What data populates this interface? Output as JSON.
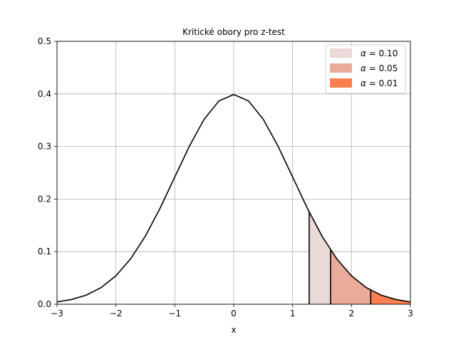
{
  "chart_data": {
    "type": "area",
    "title": "Kritické obory pro z-test",
    "xlabel": "x",
    "ylabel": "",
    "xlim": [
      -3,
      3
    ],
    "ylim": [
      0,
      0.5
    ],
    "xticks": [
      -3,
      -2,
      -1,
      0,
      1,
      2,
      3
    ],
    "xtick_labels": [
      "−3",
      "−2",
      "−1",
      "0",
      "1",
      "2",
      "3"
    ],
    "yticks": [
      0.0,
      0.1,
      0.2,
      0.3,
      0.4,
      0.5
    ],
    "ytick_labels": [
      "0.0",
      "0.1",
      "0.2",
      "0.3",
      "0.4",
      "0.5"
    ],
    "grid": true,
    "legend_position": "top-right",
    "curve": {
      "x": [
        -3.0,
        -2.75,
        -2.5,
        -2.25,
        -2.0,
        -1.75,
        -1.5,
        -1.25,
        -1.0,
        -0.75,
        -0.5,
        -0.25,
        0.0,
        0.25,
        0.5,
        0.75,
        1.0,
        1.25,
        1.5,
        1.75,
        2.0,
        2.25,
        2.5,
        2.75,
        3.0
      ],
      "y": [
        0.0044,
        0.0091,
        0.0175,
        0.0317,
        0.054,
        0.0863,
        0.1295,
        0.1826,
        0.242,
        0.3011,
        0.3521,
        0.3867,
        0.3989,
        0.3867,
        0.3521,
        0.3011,
        0.242,
        0.1826,
        0.1295,
        0.0863,
        0.054,
        0.0317,
        0.0175,
        0.0091,
        0.0044
      ],
      "color": "#000000"
    },
    "series": [
      {
        "name": "α = 0.10",
        "legend_prefix": "α",
        "legend_value": "= 0.10",
        "x_start": 1.2816,
        "x_end": 1.6449,
        "color": "#ead9d6"
      },
      {
        "name": "α = 0.05",
        "legend_prefix": "α",
        "legend_value": "= 0.05",
        "x_start": 1.6449,
        "x_end": 2.3263,
        "color": "#eaab9b"
      },
      {
        "name": "α = 0.01",
        "legend_prefix": "α",
        "legend_value": "= 0.01",
        "x_start": 2.3263,
        "x_end": 3.0,
        "color": "#ff7f50"
      }
    ]
  }
}
